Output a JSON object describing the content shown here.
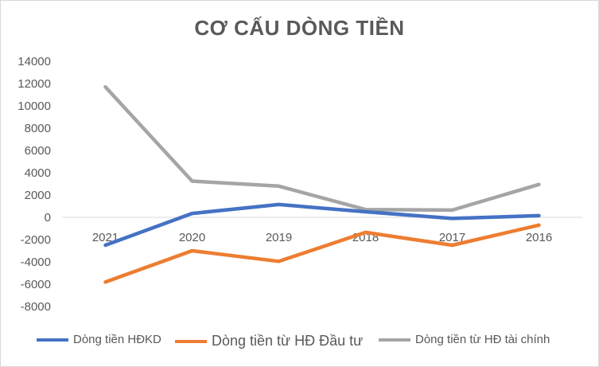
{
  "chart_data": {
    "type": "line",
    "title": "CƠ CẤU DÒNG TIỀN",
    "categories": [
      "2021",
      "2020",
      "2019",
      "2018",
      "2017",
      "2016"
    ],
    "ylim": [
      -8000,
      14000
    ],
    "yticks": [
      14000,
      12000,
      10000,
      8000,
      6000,
      4000,
      2000,
      0,
      -2000,
      -4000,
      -6000,
      -8000
    ],
    "ytick_labels": [
      "14000",
      "12000",
      "10000",
      "8000",
      "6000",
      "4000",
      "2000",
      "0",
      "-2000",
      "-4000",
      "-6000",
      "-8000"
    ],
    "grid": false,
    "legend": "bottom",
    "series": [
      {
        "name": "Dòng tiền HĐKD",
        "color": "#4472c4",
        "values": [
          -2500,
          350,
          1150,
          500,
          -100,
          150
        ]
      },
      {
        "name": "Dòng tiền từ HĐ Đầu tư",
        "color": "#ed7d31",
        "values": [
          -5800,
          -3000,
          -3950,
          -1350,
          -2500,
          -700
        ]
      },
      {
        "name": "Dòng tiền từ HĐ tài chính",
        "color": "#a5a5a5",
        "values": [
          11700,
          3250,
          2800,
          700,
          650,
          2950
        ]
      }
    ]
  }
}
